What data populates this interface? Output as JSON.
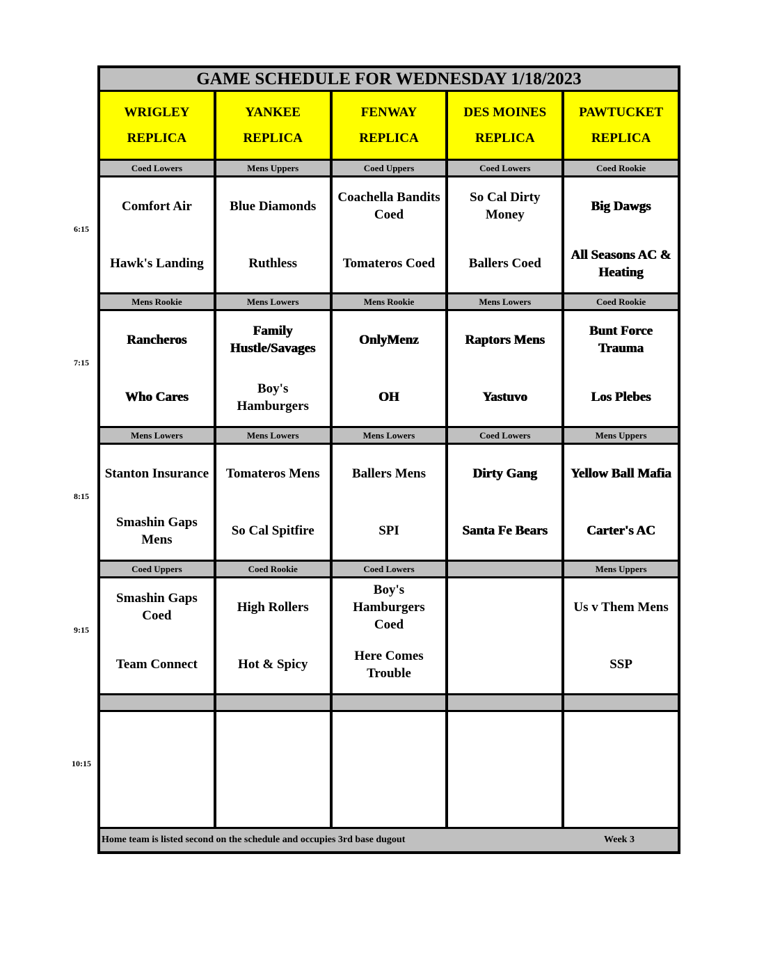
{
  "title": "GAME SCHEDULE FOR WEDNESDAY 1/18/2023",
  "fields": [
    {
      "line1": "WRIGLEY",
      "line2": "REPLICA"
    },
    {
      "line1": "YANKEE",
      "line2": "REPLICA"
    },
    {
      "line1": "FENWAY",
      "line2": "REPLICA"
    },
    {
      "line1": "DES MOINES",
      "line2": "REPLICA"
    },
    {
      "line1": "PAWTUCKET",
      "line2": "REPLICA"
    }
  ],
  "header_color": "#ffff00",
  "division_color": "#c0c0c0",
  "slots": [
    {
      "time": "6:15",
      "games": [
        {
          "division": "Coed Lowers",
          "away": "Comfort Air",
          "home": "Hawk's Landing"
        },
        {
          "division": "Mens Uppers",
          "away": "Blue Diamonds",
          "home": "Ruthless"
        },
        {
          "division": "Coed Uppers",
          "away": "Coachella Bandits\nCoed",
          "home": "Tomateros Coed"
        },
        {
          "division": "Coed Lowers",
          "away": "So Cal Dirty\nMoney",
          "home": "Ballers Coed"
        },
        {
          "division": "Coed Rookie",
          "away": "Big Dawgs",
          "home": "All Seasons AC &\nHeating",
          "heavy": true
        }
      ]
    },
    {
      "time": "7:15",
      "games": [
        {
          "division": "Mens Rookie",
          "away": "Rancheros",
          "home": "Who Cares",
          "heavy": true
        },
        {
          "division": "Mens Lowers",
          "away": "Family\nHustle/Savages",
          "home": "Boy's\nHamburgers",
          "heavy_away": true
        },
        {
          "division": "Mens Rookie",
          "away": "OnlyMenz",
          "home": "OH",
          "heavy": true
        },
        {
          "division": "Mens Lowers",
          "away": "Raptors Mens",
          "home": "Yastuvo",
          "heavy": true
        },
        {
          "division": "Coed Rookie",
          "away": "Bunt Force\nTrauma",
          "home": "Los Plebes",
          "heavy": true
        }
      ]
    },
    {
      "time": "8:15",
      "games": [
        {
          "division": "Mens Lowers",
          "away": "Stanton Insurance",
          "home": "Smashin Gaps\nMens"
        },
        {
          "division": "Mens Lowers",
          "away": "Tomateros Mens",
          "home": "So Cal Spitfire"
        },
        {
          "division": "Mens Lowers",
          "away": "Ballers Mens",
          "home": "SPI"
        },
        {
          "division": "Coed Lowers",
          "away": "Dirty Gang",
          "home": "Santa Fe Bears",
          "heavy": true
        },
        {
          "division": "Mens Uppers",
          "away": "Yellow Ball Mafia",
          "home": "Carter's AC",
          "heavy": true
        }
      ]
    },
    {
      "time": "9:15",
      "games": [
        {
          "division": "Coed Uppers",
          "away": "Smashin Gaps\nCoed",
          "home": "Team Connect"
        },
        {
          "division": "Coed Rookie",
          "away": "High Rollers",
          "home": "Hot & Spicy"
        },
        {
          "division": "Coed Lowers",
          "away": "Boy's\nHamburgers\nCoed",
          "home": "Here Comes\nTrouble"
        },
        {
          "division": "",
          "away": "",
          "home": ""
        },
        {
          "division": "Mens Uppers",
          "away": "Us v Them Mens",
          "home": "SSP"
        }
      ]
    },
    {
      "time": "10:15",
      "games": [
        {
          "division": "",
          "away": "",
          "home": ""
        },
        {
          "division": "",
          "away": "",
          "home": ""
        },
        {
          "division": "",
          "away": "",
          "home": ""
        },
        {
          "division": "",
          "away": "",
          "home": ""
        },
        {
          "division": "",
          "away": "",
          "home": ""
        }
      ]
    }
  ],
  "footer": {
    "note": "Home team is listed second on the schedule and occupies 3rd base dugout",
    "week": "Week 3"
  }
}
